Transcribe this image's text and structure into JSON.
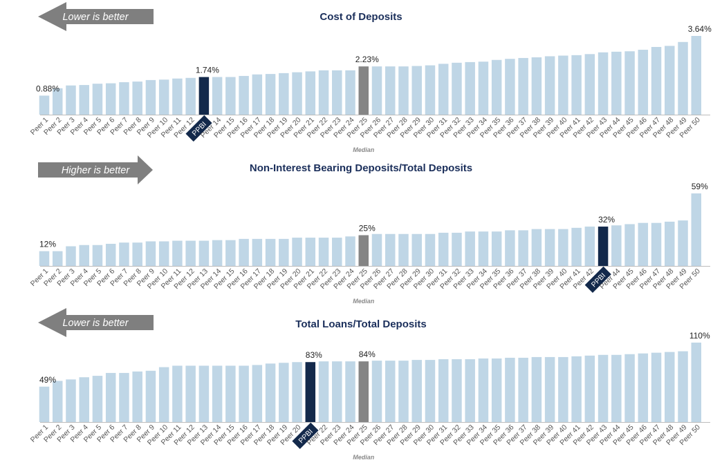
{
  "colors": {
    "peer": "#bfd6e6",
    "company": "#13294b",
    "median": "#858585",
    "arrow": "#7f7f7f",
    "title": "#1b2f5b",
    "axis": "#bbbbbb"
  },
  "median_label": "Median",
  "chart_data": [
    {
      "type": "bar",
      "title": "Cost of Deposits",
      "arrow": {
        "direction": "left",
        "text": "Lower is better"
      },
      "categories": [
        "Peer 1",
        "Peer 2",
        "Peer 3",
        "Peer 4",
        "Peer 5",
        "Peer 6",
        "Peer 7",
        "Peer 8",
        "Peer 9",
        "Peer 10",
        "Peer 11",
        "Peer 12",
        "PPBI",
        "Peer 14",
        "Peer 15",
        "Peer 16",
        "Peer 17",
        "Peer 18",
        "Peer 19",
        "Peer 20",
        "Peer 21",
        "Peer 22",
        "Peer 23",
        "Peer 24",
        "Peer 25",
        "Peer 26",
        "Peer 27",
        "Peer 28",
        "Peer 29",
        "Peer 30",
        "Peer 31",
        "Peer 32",
        "Peer 33",
        "Peer 34",
        "Peer 35",
        "Peer 36",
        "Peer 37",
        "Peer 38",
        "Peer 39",
        "Peer 40",
        "Peer 41",
        "Peer 42",
        "Peer 43",
        "Peer 44",
        "Peer 45",
        "Peer 46",
        "Peer 47",
        "Peer 48",
        "Peer 49",
        "Peer 50"
      ],
      "values": [
        0.88,
        1.22,
        1.35,
        1.37,
        1.43,
        1.45,
        1.5,
        1.53,
        1.6,
        1.62,
        1.67,
        1.7,
        1.74,
        1.74,
        1.74,
        1.79,
        1.86,
        1.88,
        1.92,
        1.96,
        2.0,
        2.05,
        2.05,
        2.05,
        2.23,
        2.23,
        2.23,
        2.23,
        2.25,
        2.28,
        2.35,
        2.4,
        2.43,
        2.45,
        2.53,
        2.58,
        2.62,
        2.65,
        2.7,
        2.73,
        2.75,
        2.8,
        2.88,
        2.91,
        2.93,
        3.0,
        3.13,
        3.18,
        3.36,
        3.64
      ],
      "company_index": 12,
      "median_index": 24,
      "data_labels": [
        {
          "index": 0,
          "text": "0.88%"
        },
        {
          "index": 12,
          "text": "1.74%"
        },
        {
          "index": 24,
          "text": "2.23%"
        },
        {
          "index": 49,
          "text": "3.64%"
        }
      ],
      "ylim": [
        0,
        3.64
      ]
    },
    {
      "type": "bar",
      "title": "Non-Interest Bearing Deposits/Total Deposits",
      "arrow": {
        "direction": "right",
        "text": "Higher is better"
      },
      "categories": [
        "Peer 1",
        "Peer 2",
        "Peer 3",
        "Peer 4",
        "Peer 5",
        "Peer 6",
        "Peer 7",
        "Peer 8",
        "Peer 9",
        "Peer 10",
        "Peer 11",
        "Peer 12",
        "Peer 13",
        "Peer 14",
        "Peer 15",
        "Peer 16",
        "Peer 17",
        "Peer 18",
        "Peer 19",
        "Peer 20",
        "Peer 21",
        "Peer 22",
        "Peer 23",
        "Peer 24",
        "Peer 25",
        "Peer 26",
        "Peer 27",
        "Peer 28",
        "Peer 29",
        "Peer 30",
        "Peer 31",
        "Peer 32",
        "Peer 33",
        "Peer 34",
        "Peer 35",
        "Peer 36",
        "Peer 37",
        "Peer 38",
        "Peer 39",
        "Peer 40",
        "Peer 41",
        "Peer 42",
        "PPBI",
        "Peer 44",
        "Peer 45",
        "Peer 46",
        "Peer 47",
        "Peer 48",
        "Peer 49",
        "Peer 50"
      ],
      "values": [
        12,
        12,
        16,
        17,
        17,
        18,
        19,
        19,
        20,
        20,
        20.5,
        20.5,
        20.5,
        21,
        21,
        22,
        22,
        22,
        22,
        23,
        23,
        23,
        23,
        24,
        25,
        26,
        26,
        26,
        26,
        26,
        27,
        27,
        28,
        28,
        28,
        29,
        29,
        30,
        30,
        30,
        31,
        32,
        32,
        33,
        34,
        35,
        35,
        36,
        37,
        59
      ],
      "company_index": 42,
      "median_index": 24,
      "data_labels": [
        {
          "index": 0,
          "text": "12%"
        },
        {
          "index": 24,
          "text": "25%"
        },
        {
          "index": 42,
          "text": "32%"
        },
        {
          "index": 49,
          "text": "59%"
        }
      ],
      "ylim": [
        0,
        59
      ]
    },
    {
      "type": "bar",
      "title": "Total Loans/Total Deposits",
      "arrow": {
        "direction": "left",
        "text": "Lower is better"
      },
      "categories": [
        "Peer 1",
        "Peer 2",
        "Peer 3",
        "Peer 4",
        "Peer 5",
        "Peer 6",
        "Peer 7",
        "Peer 8",
        "Peer 9",
        "Peer 10",
        "Peer 11",
        "Peer 12",
        "Peer 13",
        "Peer 14",
        "Peer 15",
        "Peer 16",
        "Peer 17",
        "Peer 18",
        "Peer 19",
        "Peer 20",
        "PPBI",
        "Peer 22",
        "Peer 23",
        "Peer 24",
        "Peer 25",
        "Peer 26",
        "Peer 27",
        "Peer 28",
        "Peer 29",
        "Peer 30",
        "Peer 31",
        "Peer 32",
        "Peer 33",
        "Peer 34",
        "Peer 35",
        "Peer 36",
        "Peer 37",
        "Peer 38",
        "Peer 39",
        "Peer 40",
        "Peer 41",
        "Peer 42",
        "Peer 43",
        "Peer 44",
        "Peer 45",
        "Peer 46",
        "Peer 47",
        "Peer 48",
        "Peer 49",
        "Peer 50"
      ],
      "values": [
        49,
        57,
        59,
        62,
        64,
        68,
        68,
        70,
        71,
        76,
        78,
        78,
        78,
        78,
        78,
        78,
        79,
        81,
        82,
        83,
        83,
        84,
        84,
        84,
        84,
        85,
        85,
        85,
        86,
        86,
        87,
        87,
        87,
        88,
        88,
        89,
        89,
        90,
        90,
        90,
        91,
        92,
        93,
        93,
        94,
        95,
        96,
        97,
        98,
        110
      ],
      "company_index": 20,
      "median_index": 24,
      "data_labels": [
        {
          "index": 0,
          "text": "49%"
        },
        {
          "index": 20,
          "text": "83%"
        },
        {
          "index": 24,
          "text": "84%"
        },
        {
          "index": 49,
          "text": "110%"
        }
      ],
      "ylim": [
        0,
        110
      ]
    }
  ]
}
